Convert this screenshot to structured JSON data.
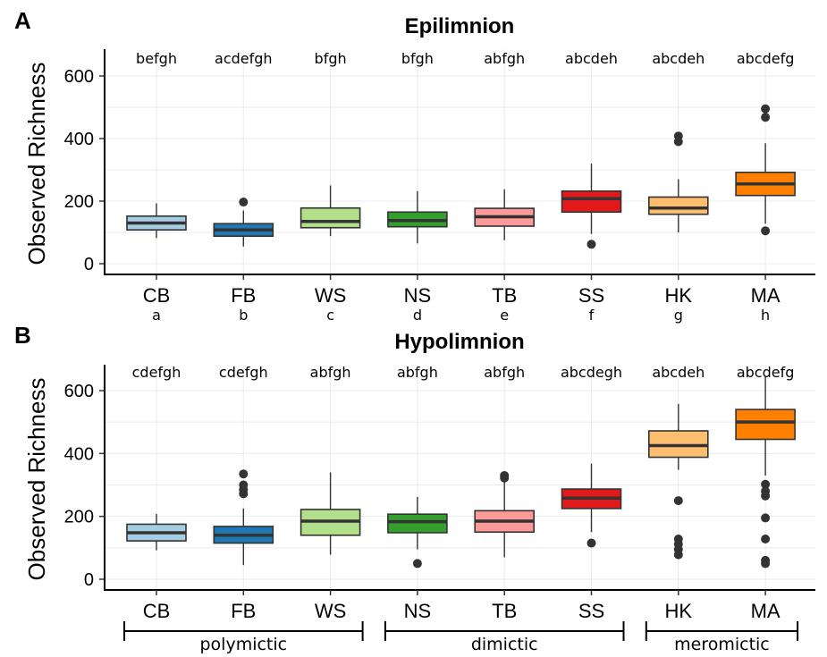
{
  "chart_data": [
    {
      "type": "box",
      "panel_letter": "A",
      "title": "Epilimnion",
      "ylabel": "Observed Richness",
      "ylim": [
        -30,
        685
      ],
      "yticks": [
        0,
        200,
        400,
        600
      ],
      "grid": true,
      "categories": [
        "CB",
        "FB",
        "WS",
        "NS",
        "TB",
        "SS",
        "HK",
        "MA"
      ],
      "category_codes": [
        "a",
        "b",
        "c",
        "d",
        "e",
        "f",
        "g",
        "h"
      ],
      "significance_letters": [
        "befgh",
        "acdefgh",
        "bfgh",
        "bfgh",
        "abfgh",
        "abcdeh",
        "abcdeh",
        "abcdefg"
      ],
      "colors": [
        "#a6cee3",
        "#1f78b4",
        "#b2df8a",
        "#33a02c",
        "#fb9a99",
        "#e31a1c",
        "#fdbf6f",
        "#ff7f00"
      ],
      "boxes": [
        {
          "lower": 82,
          "q1": 108,
          "median": 130,
          "q3": 152,
          "upper": 193,
          "outliers": []
        },
        {
          "lower": 55,
          "q1": 88,
          "median": 108,
          "q3": 128,
          "upper": 170,
          "outliers": [
            197
          ]
        },
        {
          "lower": 88,
          "q1": 115,
          "median": 135,
          "q3": 178,
          "upper": 250,
          "outliers": []
        },
        {
          "lower": 65,
          "q1": 118,
          "median": 138,
          "q3": 165,
          "upper": 232,
          "outliers": []
        },
        {
          "lower": 75,
          "q1": 120,
          "median": 150,
          "q3": 177,
          "upper": 238,
          "outliers": []
        },
        {
          "lower": 95,
          "q1": 165,
          "median": 208,
          "q3": 232,
          "upper": 320,
          "outliers": [
            62
          ]
        },
        {
          "lower": 100,
          "q1": 158,
          "median": 178,
          "q3": 213,
          "upper": 270,
          "outliers": [
            390,
            408
          ]
        },
        {
          "lower": 128,
          "q1": 218,
          "median": 255,
          "q3": 292,
          "upper": 385,
          "outliers": [
            468,
            495,
            105
          ]
        }
      ]
    },
    {
      "type": "box",
      "panel_letter": "B",
      "title": "Hypolimnion",
      "ylabel": "Observed Richness",
      "ylim": [
        -30,
        685
      ],
      "yticks": [
        0,
        200,
        400,
        600
      ],
      "grid": true,
      "categories": [
        "CB",
        "FB",
        "WS",
        "NS",
        "TB",
        "SS",
        "HK",
        "MA"
      ],
      "significance_letters": [
        "cdefgh",
        "cdefgh",
        "abfgh",
        "abfgh",
        "abfgh",
        "abcdegh",
        "abcdeh",
        "abcdefg"
      ],
      "colors": [
        "#a6cee3",
        "#1f78b4",
        "#b2df8a",
        "#33a02c",
        "#fb9a99",
        "#e31a1c",
        "#fdbf6f",
        "#ff7f00"
      ],
      "boxes": [
        {
          "lower": 92,
          "q1": 122,
          "median": 148,
          "q3": 175,
          "upper": 208,
          "outliers": []
        },
        {
          "lower": 45,
          "q1": 115,
          "median": 140,
          "q3": 168,
          "upper": 225,
          "outliers": [
            272,
            285,
            300,
            335
          ]
        },
        {
          "lower": 78,
          "q1": 140,
          "median": 185,
          "q3": 222,
          "upper": 340,
          "outliers": []
        },
        {
          "lower": 95,
          "q1": 148,
          "median": 183,
          "q3": 207,
          "upper": 262,
          "outliers": [
            50
          ]
        },
        {
          "lower": 70,
          "q1": 150,
          "median": 185,
          "q3": 218,
          "upper": 320,
          "outliers": [
            322,
            330
          ]
        },
        {
          "lower": 150,
          "q1": 225,
          "median": 258,
          "q3": 287,
          "upper": 368,
          "outliers": [
            115
          ]
        },
        {
          "lower": 348,
          "q1": 388,
          "median": 425,
          "q3": 472,
          "upper": 558,
          "outliers": [
            250,
            128,
            112,
            95,
            78
          ]
        },
        {
          "lower": 330,
          "q1": 445,
          "median": 500,
          "q3": 540,
          "upper": 645,
          "outliers": [
            302,
            280,
            265,
            195,
            128,
            60,
            50
          ]
        }
      ],
      "groups": [
        {
          "label": "polymictic",
          "from": "CB",
          "to": "WS"
        },
        {
          "label": "dimictic",
          "from": "NS",
          "to": "SS"
        },
        {
          "label": "meromictic",
          "from": "HK",
          "to": "MA"
        }
      ]
    }
  ]
}
